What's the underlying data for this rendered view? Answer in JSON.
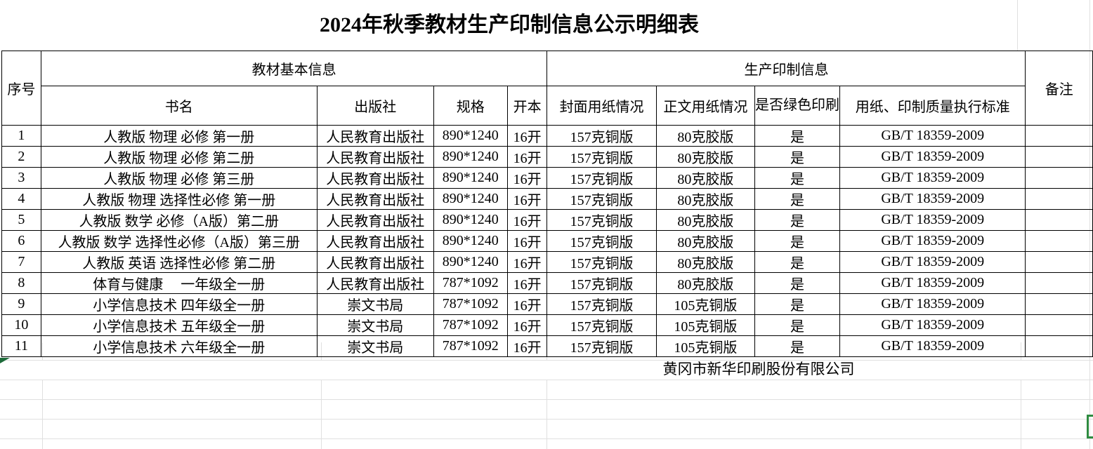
{
  "title": "2024年秋季教材生产印制信息公示明细表",
  "table": {
    "header": {
      "serial": "序号",
      "basic_info_group": "教材基本信息",
      "production_group": "生产印制信息",
      "book_name": "书名",
      "publisher": "出版社",
      "spec": "规格",
      "format": "开本",
      "cover_paper": "封面用纸情况",
      "body_paper": "正文用纸情况",
      "green_print": "是否绿色印刷",
      "standard": "用纸、印制质量执行标准",
      "remark": "备注"
    },
    "rows": [
      {
        "no": "1",
        "name": "人教版 物理 必修 第一册",
        "publisher": "人民教育出版社",
        "spec": "890*1240",
        "format": "16开",
        "cover": "157克铜版",
        "body": "80克胶版",
        "green": "是",
        "standard": "GB/T 18359-2009",
        "remark": ""
      },
      {
        "no": "2",
        "name": "人教版 物理 必修 第二册",
        "publisher": "人民教育出版社",
        "spec": "890*1240",
        "format": "16开",
        "cover": "157克铜版",
        "body": "80克胶版",
        "green": "是",
        "standard": "GB/T 18359-2009",
        "remark": ""
      },
      {
        "no": "3",
        "name": "人教版 物理 必修 第三册",
        "publisher": "人民教育出版社",
        "spec": "890*1240",
        "format": "16开",
        "cover": "157克铜版",
        "body": "80克胶版",
        "green": "是",
        "standard": "GB/T 18359-2009",
        "remark": ""
      },
      {
        "no": "4",
        "name": "人教版 物理 选择性必修 第一册",
        "publisher": "人民教育出版社",
        "spec": "890*1240",
        "format": "16开",
        "cover": "157克铜版",
        "body": "80克胶版",
        "green": "是",
        "standard": "GB/T 18359-2009",
        "remark": ""
      },
      {
        "no": "5",
        "name": "人教版 数学 必修（A版）第二册",
        "publisher": "人民教育出版社",
        "spec": "890*1240",
        "format": "16开",
        "cover": "157克铜版",
        "body": "80克胶版",
        "green": "是",
        "standard": "GB/T 18359-2009",
        "remark": ""
      },
      {
        "no": "6",
        "name": "人教版 数学 选择性必修（A版）第三册",
        "publisher": "人民教育出版社",
        "spec": "890*1240",
        "format": "16开",
        "cover": "157克铜版",
        "body": "80克胶版",
        "green": "是",
        "standard": "GB/T 18359-2009",
        "remark": ""
      },
      {
        "no": "7",
        "name": "人教版 英语 选择性必修 第二册",
        "publisher": "人民教育出版社",
        "spec": "890*1240",
        "format": "16开",
        "cover": "157克铜版",
        "body": "80克胶版",
        "green": "是",
        "standard": "GB/T 18359-2009",
        "remark": ""
      },
      {
        "no": "8",
        "name": "体育与健康　 一年级全一册",
        "publisher": "人民教育出版社",
        "spec": "787*1092",
        "format": "16开",
        "cover": "157克铜版",
        "body": "80克胶版",
        "green": "是",
        "standard": "GB/T 18359-2009",
        "remark": ""
      },
      {
        "no": "9",
        "name": "小学信息技术 四年级全一册",
        "publisher": "崇文书局",
        "spec": "787*1092",
        "format": "16开",
        "cover": "157克铜版",
        "body": "105克铜版",
        "green": "是",
        "standard": "GB/T 18359-2009",
        "remark": ""
      },
      {
        "no": "10",
        "name": "小学信息技术 五年级全一册",
        "publisher": "崇文书局",
        "spec": "787*1092",
        "format": "16开",
        "cover": "157克铜版",
        "body": "105克铜版",
        "green": "是",
        "standard": "GB/T 18359-2009",
        "remark": ""
      },
      {
        "no": "11",
        "name": "小学信息技术 六年级全一册",
        "publisher": "崇文书局",
        "spec": "787*1092",
        "format": "16开",
        "cover": "157克铜版",
        "body": "105克铜版",
        "green": "是",
        "standard": "GB/T 18359-2009",
        "remark": ""
      }
    ]
  },
  "footer": {
    "company": "黄冈市新华印刷股份有限公司"
  },
  "icons": {
    "corner_marker": "green-triangle-marker",
    "selection": "green-selection-bracket"
  },
  "colors": {
    "background": "#ffffff",
    "table_border": "#000000",
    "gridline": "#e0e0e0",
    "marker_green": "#1d6b3a",
    "selection_green": "#2e8b40"
  }
}
